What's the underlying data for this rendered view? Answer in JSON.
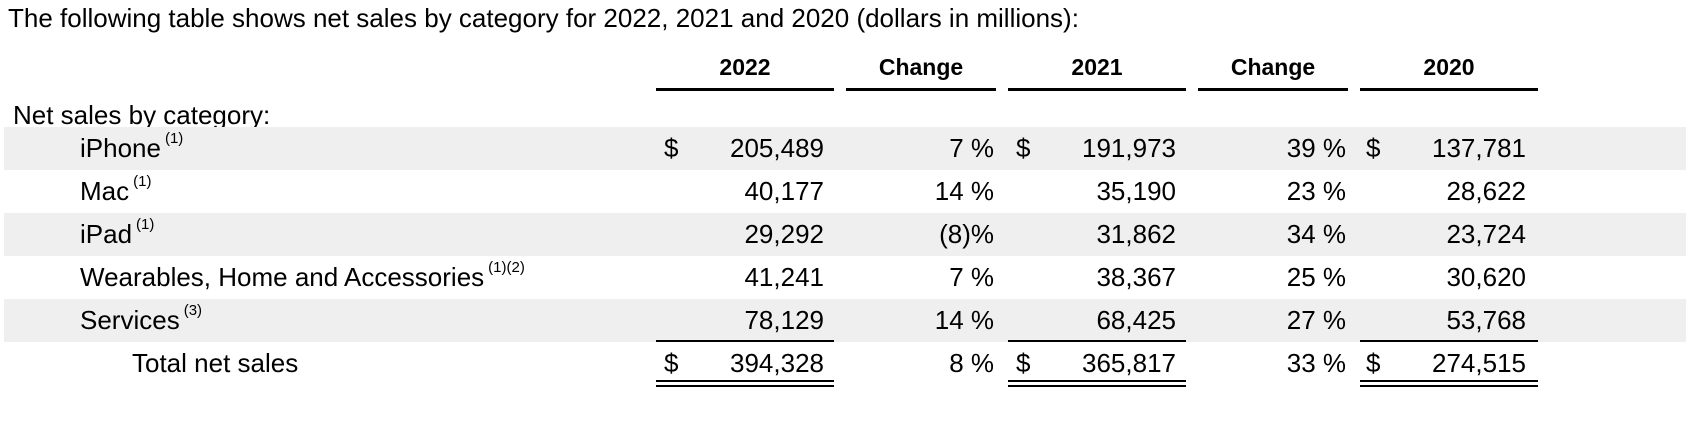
{
  "intro": "The following table shows net sales by category for 2022, 2021 and 2020 (dollars in millions):",
  "headers": {
    "y2022": "2022",
    "chg1": "Change",
    "y2021": "2021",
    "chg2": "Change",
    "y2020": "2020"
  },
  "section_label": "Net sales by category:",
  "currency": "$",
  "rows": [
    {
      "label": "iPhone",
      "note": "(1)",
      "v2022": "205,489",
      "chg1": "7 %",
      "v2021": "191,973",
      "chg2": "39 %",
      "v2020": "137,781"
    },
    {
      "label": "Mac",
      "note": "(1)",
      "v2022": "40,177",
      "chg1": "14 %",
      "v2021": "35,190",
      "chg2": "23 %",
      "v2020": "28,622"
    },
    {
      "label": "iPad",
      "note": "(1)",
      "v2022": "29,292",
      "chg1": "(8)%",
      "v2021": "31,862",
      "chg2": "34 %",
      "v2020": "23,724"
    },
    {
      "label": "Wearables, Home and Accessories",
      "note": "(1)(2)",
      "v2022": "41,241",
      "chg1": "7 %",
      "v2021": "38,367",
      "chg2": "25 %",
      "v2020": "30,620"
    },
    {
      "label": "Services",
      "note": "(3)",
      "v2022": "78,129",
      "chg1": "14 %",
      "v2021": "68,425",
      "chg2": "27 %",
      "v2020": "53,768"
    }
  ],
  "total": {
    "label": "Total net sales",
    "v2022": "394,328",
    "chg1": "8 %",
    "v2021": "365,817",
    "chg2": "33 %",
    "v2020": "274,515"
  }
}
